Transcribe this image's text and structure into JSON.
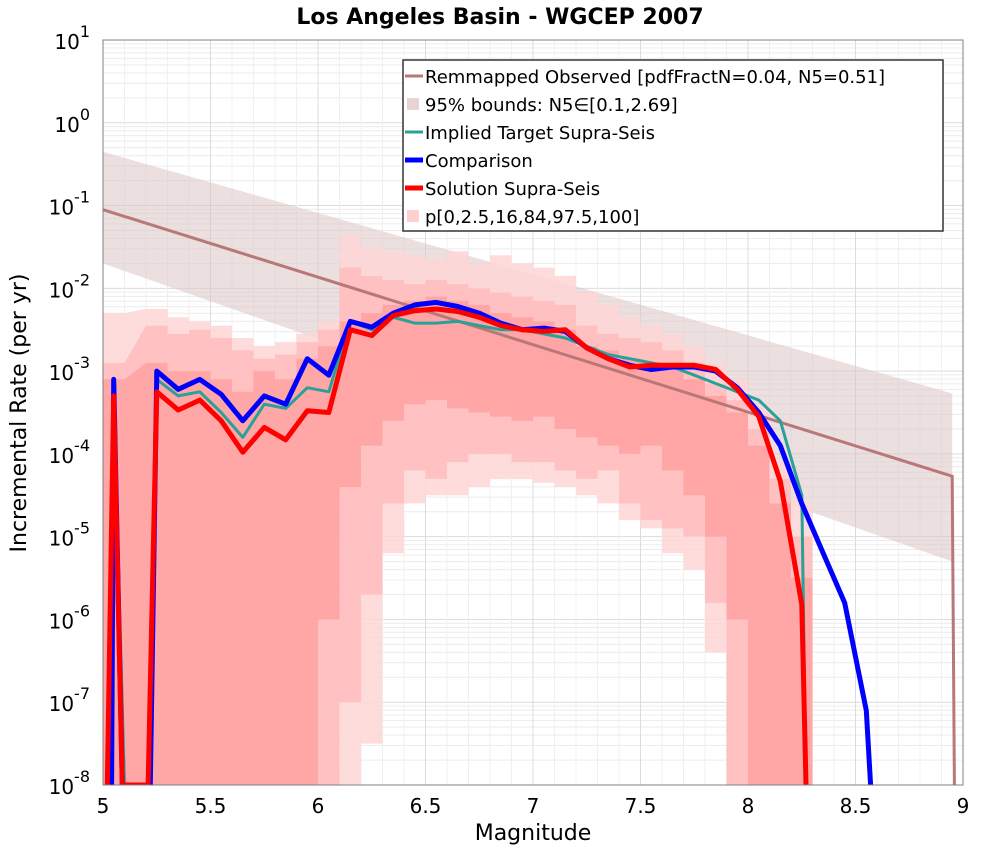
{
  "chart_data": {
    "type": "line",
    "title": "Los Angeles Basin - WGCEP 2007",
    "xlabel": "Magnitude",
    "ylabel": "Incremental Rate (per yr)",
    "xlim": [
      5,
      9
    ],
    "ylim_exp": [
      -8,
      1
    ],
    "yscale": "log",
    "grid": true,
    "legend_position": "top-right",
    "x_ticks": [
      "5",
      "5.5",
      "6",
      "6.5",
      "7",
      "7.5",
      "8",
      "8.5",
      "9"
    ],
    "y_tick_base": "10",
    "y_tick_exps": [
      "1",
      "0",
      "-1",
      "-2",
      "-3",
      "-4",
      "-5",
      "-6",
      "-7",
      "-8"
    ],
    "legend": [
      {
        "label": "Remmapped Observed [pdfFractN=0.04, N5=0.51]",
        "kind": "line",
        "color": "#b87878"
      },
      {
        "label": "95% bounds: N5∈[0.1,2.69]",
        "kind": "patch",
        "color": "#e6d4d4"
      },
      {
        "label": "Implied Target Supra-Seis",
        "kind": "line",
        "color": "#2aa198"
      },
      {
        "label": "Comparison",
        "kind": "line",
        "color": "#0000ff"
      },
      {
        "label": "Solution Supra-Seis",
        "kind": "line",
        "color": "#ff0000"
      },
      {
        "label": "p[0,2.5,16,84,97.5,100]",
        "kind": "patch",
        "color": "#ffd0d0"
      }
    ],
    "observed": {
      "name": "Remmapped Observed [pdfFractN=0.04, N5=0.51]",
      "color": "#b87878",
      "x": [
        5.0,
        8.95,
        8.96
      ],
      "logy": [
        -1.05,
        -4.27,
        -8.0
      ],
      "band": {
        "x": [
          5.0,
          8.95
        ],
        "logy_upper": [
          -0.35,
          -3.27
        ],
        "logy_lower": [
          -1.7,
          -5.3
        ]
      }
    },
    "solution_bands": {
      "x": [
        5.05,
        5.25,
        5.35,
        5.45,
        5.55,
        5.65,
        5.75,
        5.85,
        5.95,
        6.05,
        6.15,
        6.25,
        6.35,
        6.45,
        6.55,
        6.65,
        6.75,
        6.85,
        6.95,
        7.05,
        7.15,
        7.25,
        7.35,
        7.45,
        7.55,
        7.65,
        7.75,
        7.85,
        7.95,
        8.05,
        8.15,
        8.25
      ],
      "outer_upper": [
        -2.3,
        -2.25,
        -2.35,
        -2.4,
        -2.45,
        -2.6,
        -2.7,
        -2.65,
        -2.55,
        -2.4,
        -1.35,
        -1.5,
        -1.55,
        -1.6,
        -1.65,
        -1.55,
        -1.7,
        -1.6,
        -1.7,
        -1.75,
        -1.85,
        -2.05,
        -2.2,
        -2.35,
        -2.45,
        -2.55,
        -2.7,
        -2.9,
        -3.1,
        -3.4,
        -4.1,
        -4.6
      ],
      "inner_upper": [
        -2.9,
        -2.45,
        -2.55,
        -2.5,
        -2.6,
        -2.75,
        -2.85,
        -2.8,
        -2.65,
        -2.5,
        -1.75,
        -1.85,
        -1.9,
        -1.95,
        -1.9,
        -1.95,
        -2.0,
        -2.05,
        -2.1,
        -2.15,
        -2.2,
        -2.45,
        -2.55,
        -2.6,
        -2.65,
        -2.75,
        -2.9,
        -3.15,
        -3.35,
        -3.7,
        -4.3,
        -5.0
      ],
      "mid_upper": [
        -3.1,
        -2.9,
        -3.0,
        -3.0,
        -3.1,
        -3.25,
        -3.0,
        -3.1,
        -2.85,
        -2.7,
        -2.4,
        -2.3,
        -2.2,
        -2.15,
        -2.1,
        -2.15,
        -2.2,
        -2.3,
        -2.35,
        -2.4,
        -2.5,
        -2.7,
        -2.75,
        -2.85,
        -2.9,
        -2.95,
        -3.1,
        -3.3,
        -3.5,
        -3.9,
        -4.6,
        -5.5
      ],
      "mid_lower": [
        -8.0,
        -8.0,
        -8.0,
        -8.0,
        -8.0,
        -8.0,
        -8.0,
        -8.0,
        -8.0,
        -6.0,
        -4.4,
        -3.9,
        -3.6,
        -3.4,
        -3.35,
        -3.45,
        -3.5,
        -3.55,
        -3.6,
        -3.55,
        -3.7,
        -3.8,
        -3.9,
        -4.0,
        -3.9,
        -4.2,
        -4.5,
        -5.0,
        -6.0,
        -8.0,
        -8.0,
        -8.0
      ],
      "inner_lower": [
        -8.0,
        -8.0,
        -8.0,
        -8.0,
        -8.0,
        -8.0,
        -8.0,
        -8.0,
        -8.0,
        -8.0,
        -7.0,
        -5.7,
        -4.6,
        -4.2,
        -4.3,
        -4.1,
        -4.0,
        -4.0,
        -4.1,
        -4.1,
        -4.2,
        -4.3,
        -4.2,
        -4.6,
        -4.8,
        -4.9,
        -5.0,
        -5.8,
        -8.0,
        -8.0,
        -8.0,
        -8.0
      ],
      "outer_lower": [
        -8.0,
        -8.0,
        -8.0,
        -8.0,
        -8.0,
        -8.0,
        -8.0,
        -8.0,
        -8.0,
        -8.0,
        -8.0,
        -7.5,
        -5.2,
        -4.6,
        -4.5,
        -4.5,
        -4.4,
        -4.3,
        -4.3,
        -4.35,
        -4.4,
        -4.5,
        -4.6,
        -4.8,
        -4.9,
        -5.2,
        -5.4,
        -6.4,
        -8.0,
        -8.0,
        -8.0,
        -8.0
      ]
    },
    "series": [
      {
        "name": "Implied Target Supra-Seis",
        "color": "#2aa198",
        "width": 3,
        "x": [
          5.02,
          5.05,
          5.1,
          5.22,
          5.25,
          5.35,
          5.45,
          5.55,
          5.65,
          5.75,
          5.85,
          5.95,
          6.05,
          6.15,
          6.25,
          6.35,
          6.45,
          6.55,
          6.65,
          6.75,
          6.85,
          6.95,
          7.05,
          7.15,
          7.25,
          7.35,
          7.45,
          7.55,
          7.65,
          7.75,
          7.85,
          7.95,
          8.05,
          8.15,
          8.25,
          8.27,
          8.28
        ],
        "logy": [
          -8.0,
          -3.3,
          -8.0,
          -8.0,
          -3.1,
          -3.3,
          -3.25,
          -3.5,
          -3.8,
          -3.4,
          -3.45,
          -3.2,
          -3.25,
          -2.4,
          -2.5,
          -2.35,
          -2.42,
          -2.42,
          -2.4,
          -2.45,
          -2.5,
          -2.5,
          -2.55,
          -2.6,
          -2.7,
          -2.8,
          -2.85,
          -2.9,
          -2.95,
          -3.05,
          -3.15,
          -3.25,
          -3.35,
          -3.6,
          -4.5,
          -8.0,
          -8.0
        ]
      },
      {
        "name": "Comparison",
        "color": "#0000ff",
        "width": 5,
        "x": [
          5.04,
          5.05,
          5.09,
          5.22,
          5.25,
          5.35,
          5.45,
          5.55,
          5.65,
          5.75,
          5.85,
          5.95,
          6.05,
          6.15,
          6.25,
          6.35,
          6.45,
          6.55,
          6.65,
          6.75,
          6.85,
          6.95,
          7.05,
          7.15,
          7.25,
          7.35,
          7.45,
          7.55,
          7.65,
          7.75,
          7.85,
          7.95,
          8.05,
          8.15,
          8.25,
          8.35,
          8.45,
          8.55,
          8.57
        ],
        "logy": [
          -8.0,
          -3.1,
          -8.0,
          -8.0,
          -3.0,
          -3.22,
          -3.1,
          -3.28,
          -3.6,
          -3.3,
          -3.4,
          -2.85,
          -3.05,
          -2.4,
          -2.47,
          -2.3,
          -2.2,
          -2.17,
          -2.22,
          -2.3,
          -2.42,
          -2.5,
          -2.48,
          -2.52,
          -2.72,
          -2.85,
          -2.93,
          -2.98,
          -2.95,
          -2.95,
          -3.0,
          -3.2,
          -3.5,
          -3.9,
          -4.6,
          -5.2,
          -5.8,
          -7.1,
          -8.0
        ]
      },
      {
        "name": "Solution Supra-Seis",
        "color": "#ff0000",
        "width": 5,
        "x": [
          5.02,
          5.05,
          5.09,
          5.21,
          5.25,
          5.35,
          5.45,
          5.55,
          5.65,
          5.75,
          5.85,
          5.95,
          6.05,
          6.15,
          6.25,
          6.35,
          6.45,
          6.55,
          6.65,
          6.75,
          6.85,
          6.95,
          7.05,
          7.15,
          7.25,
          7.35,
          7.45,
          7.55,
          7.65,
          7.75,
          7.85,
          7.95,
          8.05,
          8.15,
          8.25,
          8.27
        ],
        "logy": [
          -8.0,
          -3.3,
          -8.0,
          -8.0,
          -3.25,
          -3.47,
          -3.35,
          -3.6,
          -3.98,
          -3.68,
          -3.83,
          -3.48,
          -3.5,
          -2.5,
          -2.57,
          -2.33,
          -2.27,
          -2.25,
          -2.28,
          -2.35,
          -2.45,
          -2.5,
          -2.52,
          -2.5,
          -2.72,
          -2.85,
          -2.95,
          -2.93,
          -2.93,
          -2.93,
          -2.98,
          -3.22,
          -3.55,
          -4.33,
          -5.82,
          -8.0
        ]
      }
    ]
  }
}
